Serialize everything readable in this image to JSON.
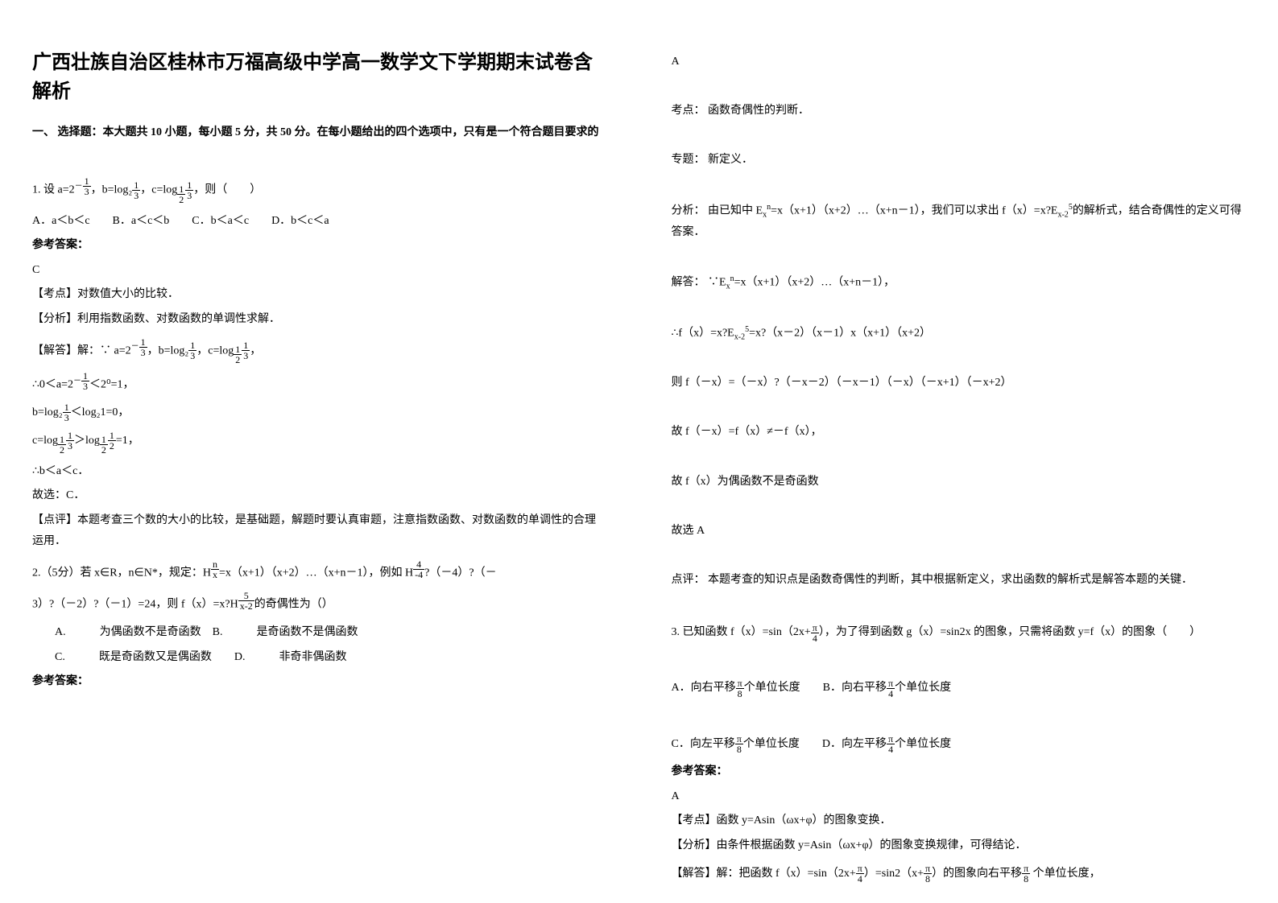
{
  "title": "广西壮族自治区桂林市万福高级中学高一数学文下学期期末试卷含解析",
  "section1": "一、 选择题：本大题共 10 小题，每小题 5 分，共 50 分。在每小题给出的四个选项中，只有是一个符合题目要求的",
  "q1": {
    "prefix": "1. 设 a=",
    "mid1": "，b=log₂",
    "mid2": "，c=",
    "suffix": "，则（　　）",
    "options": "A．a＜b＜c　　B．a＜c＜b　　C．b＜a＜c　　D．b＜c＜a",
    "answer_label": "参考答案：",
    "answer": "C",
    "kaodian": "【考点】对数值大小的比较．",
    "fenxi": "【分析】利用指数函数、对数函数的单调性求解．",
    "jieda_label": "【解答】解：∵",
    "step1_pre": "∴0＜a=",
    "step1_post": "＜2⁰=1，",
    "step2_pre": "b=",
    "step2_post": "＜log₂1=0，",
    "step3_pre": "c=",
    "step3_mid": "＞",
    "step3_end": "=1",
    "step4": "∴b＜a＜c．",
    "step5": "故选：C．",
    "dianping": "【点评】本题考查三个数的大小的比较，是基础题，解题时要认真审题，注意指数函数、对数函数的单调性的合理运用．"
  },
  "q2": {
    "text1": "2.（5分）若 x∈R，n∈N*，规定：H",
    "text2": "=x（x+1）（x+2）…（x+n－1），例如 H",
    "text3": "?（－4）?（－",
    "text4": "3）?（－2）?（－1）=24，则 f（x）=x?H",
    "text5": "的奇偶性为（）",
    "optA": "A.　　　为偶函数不是奇函数　B.　　　是奇函数不是偶函数",
    "optC": "C.　　　既是奇函数又是偶函数　　D.　　　非奇非偶函数",
    "answer_label": "参考答案："
  },
  "right": {
    "ansA": "A",
    "kaodian": "考点：  函数奇偶性的判断．",
    "zhuanti": "专题：  新定义．",
    "fenxi_pre": "分析：  由已知中 E",
    "fenxi_mid": "=x（x+1）（x+2）…（x+n－1），我们可以求出 f（x）=x?E",
    "fenxi_end": "的解析式，结合奇偶性的定义可得答案．",
    "jieda1_pre": "解答：  ∵E",
    "jieda1_end": "=x（x+1）（x+2）…（x+n－1），",
    "jieda2_pre": "∴f（x）=x?E",
    "jieda2_end": "=x?（x－2）（x－1）x（x+1）（x+2）",
    "jieda3": "则 f（－x）=（－x）?（－x－2）（－x－1）（－x）（－x+1）（－x+2）",
    "jieda4": "故 f（－x）=f（x）≠－f（x），",
    "jieda5": "故 f（x）为偶函数不是奇函数",
    "jieda6": "故选 A",
    "dianping": "点评：  本题考查的知识点是函数奇偶性的判断，其中根据新定义，求出函数的解析式是解答本题的关键．",
    "q3_pre": "3. 已知函数 f（x）=sin（2x+",
    "q3_mid": "），为了得到函数 g（x）=sin2x 的图象，只需将函数 y=f（x）的图象（　　）",
    "q3_optA_pre": "A．向右平移",
    "q3_optA_post": "个单位长度　　B．向右平移",
    "q3_optB_post": "个单位长度",
    "q3_optC_pre": "C．向左平移",
    "q3_optC_post": "个单位长度　　D．向左平移",
    "q3_optD_post": "个单位长度",
    "q3_answer_label": "参考答案：",
    "q3_answer": "A",
    "q3_kaodian": "【考点】函数 y=Asin（ωx+φ）的图象变换．",
    "q3_fenxi": "【分析】由条件根据函数 y=Asin（ωx+φ）的图象变换规律，可得结论．",
    "q3_jieda_pre": "【解答】解：把函数 f（x）=sin（2x+",
    "q3_jieda_mid1": "）=sin2（x+",
    "q3_jieda_mid2": "）的图象向右平移",
    "q3_jieda_end": " 个单位长度，"
  },
  "frac": {
    "one_third": {
      "num": "1",
      "den": "3"
    },
    "one_half": {
      "num": "1",
      "den": "2"
    },
    "pi_4": {
      "num": "π",
      "den": "4"
    },
    "pi_8": {
      "num": "π",
      "den": "8"
    },
    "n": {
      "num": "n",
      "den": "x"
    },
    "four": {
      "num": "4",
      "den": "-4"
    },
    "five": {
      "num": "5",
      "den": "x-2"
    }
  }
}
